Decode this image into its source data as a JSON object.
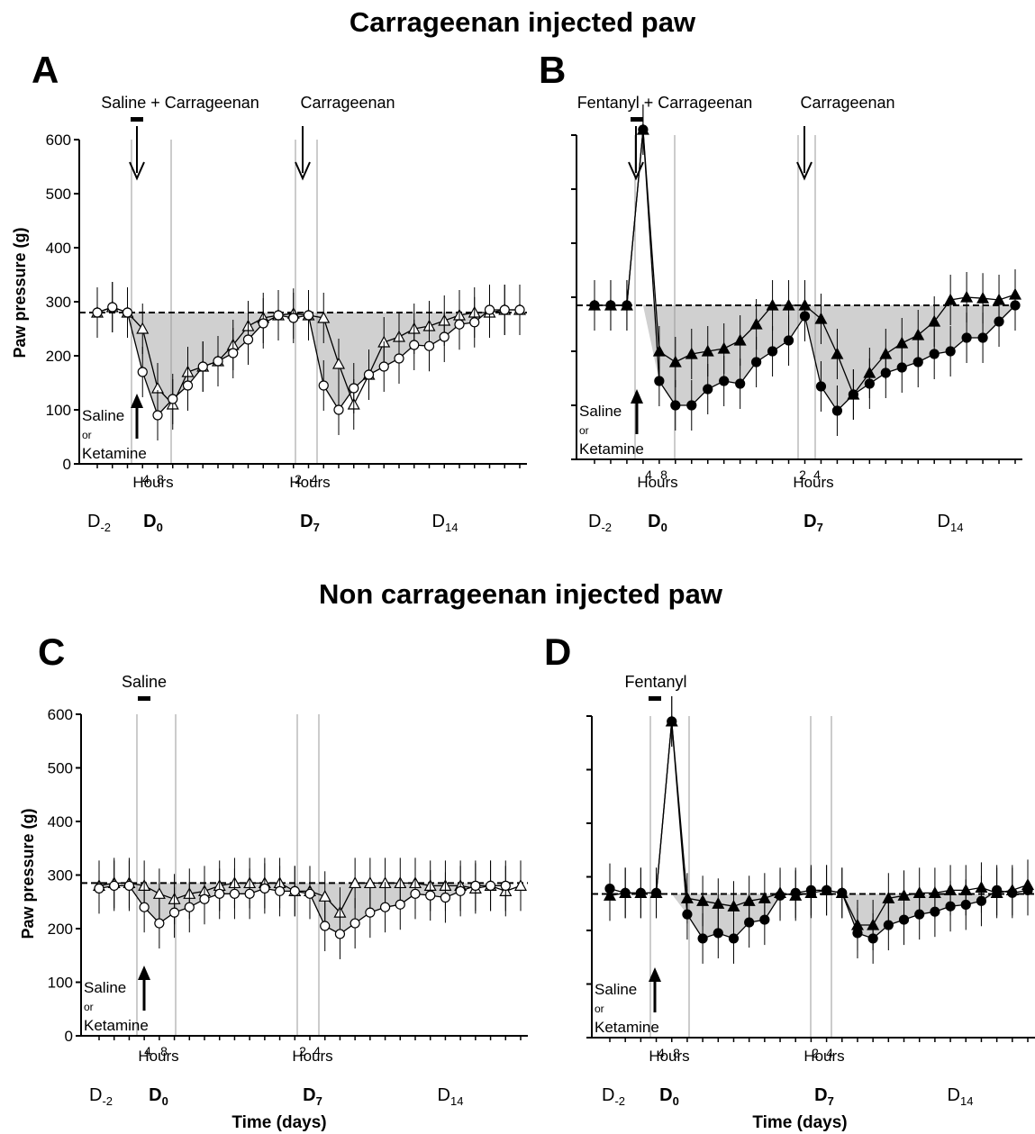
{
  "figure": {
    "section_top_title": "Carrageenan injected paw",
    "section_bottom_title": "Non carrageenan injected paw",
    "x_axis_title": "Time (days)",
    "y_axis_title": "Paw pressure (g)",
    "saline_label": "Saline",
    "or_label": "or",
    "ketamine_label": "Ketamine",
    "hours_label": "Hours",
    "tick_4": "4",
    "tick_8": "8",
    "tick_2": "2",
    "day_labels": {
      "d_minus2": "D",
      "d_minus2_sub": "-2",
      "d0": "D",
      "d0_sub": "0",
      "d7": "D",
      "d7_sub": "7",
      "d14": "D",
      "d14_sub": "14"
    },
    "y_ticks": [
      "0",
      "100",
      "200",
      "300",
      "400",
      "500",
      "600"
    ]
  },
  "chart_data": [
    {
      "panel": "A",
      "type": "line",
      "injection_labels": [
        "Saline + Carrageenan",
        "Carrageenan"
      ],
      "ylim": [
        0,
        600
      ],
      "baseline": 280,
      "series": [
        {
          "marker": "open-triangle",
          "values": [
            280,
            290,
            280,
            250,
            140,
            110,
            170,
            180,
            190,
            220,
            255,
            270,
            275,
            278,
            275,
            270,
            185,
            110,
            165,
            225,
            235,
            250,
            255,
            265,
            275,
            280,
            280,
            285,
            285
          ]
        },
        {
          "marker": "open-circle",
          "values": [
            280,
            290,
            280,
            170,
            90,
            120,
            145,
            180,
            190,
            205,
            230,
            260,
            275,
            270,
            275,
            145,
            100,
            140,
            165,
            180,
            195,
            220,
            218,
            235,
            258,
            262,
            285,
            285,
            285
          ]
        }
      ]
    },
    {
      "panel": "B",
      "type": "line",
      "injection_labels": [
        "Fentanyl + Carrageenan",
        "Carrageenan"
      ],
      "ylim": [
        0,
        600
      ],
      "baseline": 285,
      "series": [
        {
          "marker": "filled-triangle",
          "values": [
            285,
            285,
            285,
            610,
            200,
            180,
            195,
            200,
            205,
            220,
            250,
            285,
            285,
            285,
            260,
            195,
            120,
            160,
            195,
            215,
            230,
            255,
            295,
            300,
            298,
            295,
            305
          ]
        },
        {
          "marker": "filled-circle",
          "values": [
            285,
            285,
            285,
            610,
            145,
            100,
            100,
            130,
            145,
            140,
            180,
            200,
            220,
            265,
            135,
            90,
            120,
            140,
            160,
            170,
            180,
            195,
            200,
            225,
            225,
            255,
            285
          ]
        }
      ]
    },
    {
      "panel": "C",
      "type": "line",
      "injection_labels": [
        "Saline"
      ],
      "ylim": [
        0,
        600
      ],
      "baseline": 285,
      "series": [
        {
          "marker": "open-triangle",
          "values": [
            280,
            285,
            285,
            280,
            265,
            255,
            265,
            270,
            280,
            285,
            285,
            285,
            285,
            270,
            270,
            260,
            230,
            285,
            285,
            285,
            285,
            285,
            280,
            280,
            280,
            275,
            280,
            270,
            280
          ]
        },
        {
          "marker": "open-circle",
          "values": [
            275,
            280,
            280,
            240,
            210,
            230,
            240,
            255,
            265,
            265,
            265,
            275,
            270,
            270,
            265,
            205,
            190,
            210,
            230,
            240,
            245,
            265,
            262,
            258,
            270,
            280,
            280,
            280
          ]
        }
      ]
    },
    {
      "panel": "D",
      "type": "line",
      "injection_labels": [
        "Fentanyl"
      ],
      "ylim": [
        0,
        600
      ],
      "baseline": 268,
      "series": [
        {
          "marker": "filled-triangle",
          "values": [
            265,
            270,
            270,
            270,
            590,
            260,
            255,
            250,
            245,
            255,
            260,
            270,
            265,
            270,
            275,
            270,
            210,
            210,
            260,
            265,
            270,
            270,
            275,
            275,
            280,
            270,
            275,
            285
          ]
        },
        {
          "marker": "filled-circle",
          "values": [
            278,
            270,
            270,
            270,
            590,
            230,
            185,
            195,
            185,
            215,
            220,
            265,
            270,
            275,
            275,
            270,
            195,
            185,
            210,
            220,
            230,
            235,
            245,
            248,
            255,
            275,
            270,
            275
          ]
        }
      ]
    }
  ]
}
